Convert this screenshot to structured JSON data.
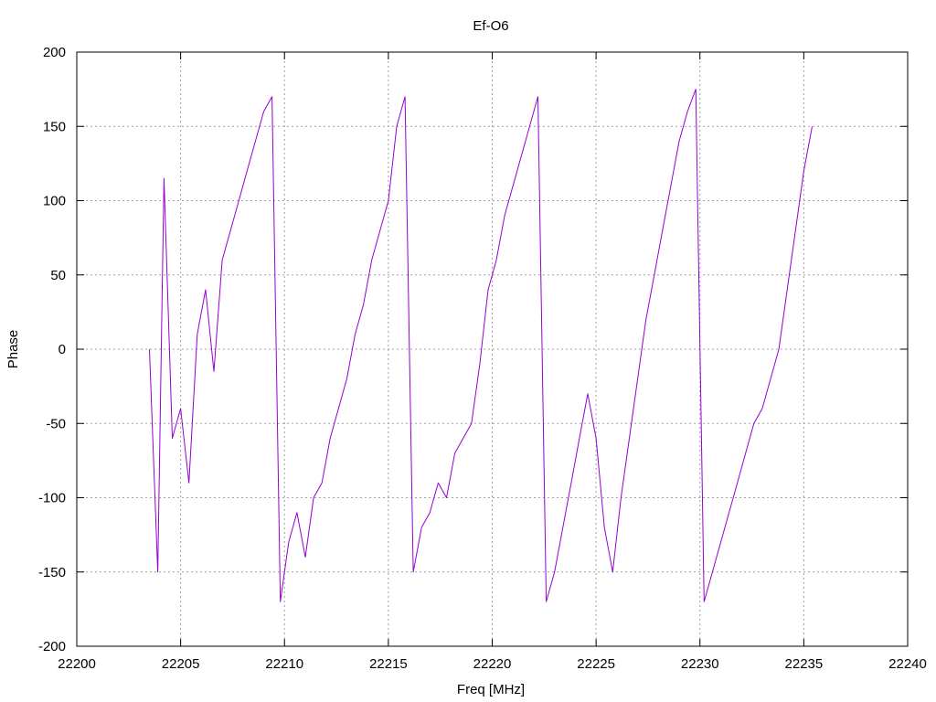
{
  "chart_data": {
    "type": "line",
    "title": "Ef-O6",
    "xlabel": "Freq [MHz]",
    "ylabel": "Phase",
    "xlim": [
      22200,
      22240
    ],
    "ylim": [
      -200,
      200
    ],
    "xticks": [
      22200,
      22205,
      22210,
      22215,
      22220,
      22225,
      22230,
      22235,
      22240
    ],
    "yticks": [
      -200,
      -150,
      -100,
      -50,
      0,
      50,
      100,
      150,
      200
    ],
    "grid": true,
    "legend": "none",
    "series_color": "#9400d3",
    "series": [
      {
        "x": [
          22203.5,
          22203.9,
          22204.2,
          22204.6,
          22205.0,
          22205.4,
          22205.8,
          22206.2,
          22206.6,
          22207.0,
          22207.4,
          22207.8,
          22208.2,
          22208.6,
          22209.0,
          22209.4,
          22209.8,
          22210.2,
          22210.6,
          22211.0,
          22211.4,
          22211.8,
          22212.2,
          22212.6,
          22213.0,
          22213.4,
          22213.8,
          22214.2,
          22214.6,
          22215.0,
          22215.4,
          22215.8,
          22216.2,
          22216.6,
          22217.0,
          22217.4,
          22217.8,
          22218.2,
          22218.6,
          22219.0,
          22219.4,
          22219.8,
          22220.2,
          22220.6,
          22221.0,
          22221.4,
          22221.8,
          22222.2,
          22222.6,
          22223.0,
          22223.4,
          22223.8,
          22224.2,
          22224.6,
          22225.0,
          22225.4,
          22225.8,
          22226.2,
          22226.6,
          22227.0,
          22227.4,
          22227.8,
          22228.2,
          22228.6,
          22229.0,
          22229.4,
          22229.8,
          22230.2,
          22230.6,
          22231.0,
          22231.4,
          22231.8,
          22232.2,
          22232.6,
          22233.0,
          22233.4,
          22233.8,
          22234.2,
          22234.6,
          22235.0,
          22235.4
        ],
        "y": [
          0,
          -150,
          115,
          -60,
          -40,
          -90,
          10,
          40,
          -15,
          60,
          80,
          100,
          120,
          140,
          160,
          170,
          -170,
          -130,
          -110,
          -140,
          -100,
          -90,
          -60,
          -40,
          -20,
          10,
          30,
          60,
          80,
          100,
          150,
          170,
          -150,
          -120,
          -110,
          -90,
          -100,
          -70,
          -60,
          -50,
          -10,
          40,
          60,
          90,
          110,
          130,
          150,
          170,
          -170,
          -150,
          -120,
          -90,
          -60,
          -30,
          -60,
          -120,
          -150,
          -100,
          -60,
          -20,
          20,
          50,
          80,
          110,
          140,
          160,
          175,
          -170,
          -150,
          -130,
          -110,
          -90,
          -70,
          -50,
          -40,
          -20,
          0,
          40,
          80,
          120,
          150
        ]
      }
    ]
  }
}
